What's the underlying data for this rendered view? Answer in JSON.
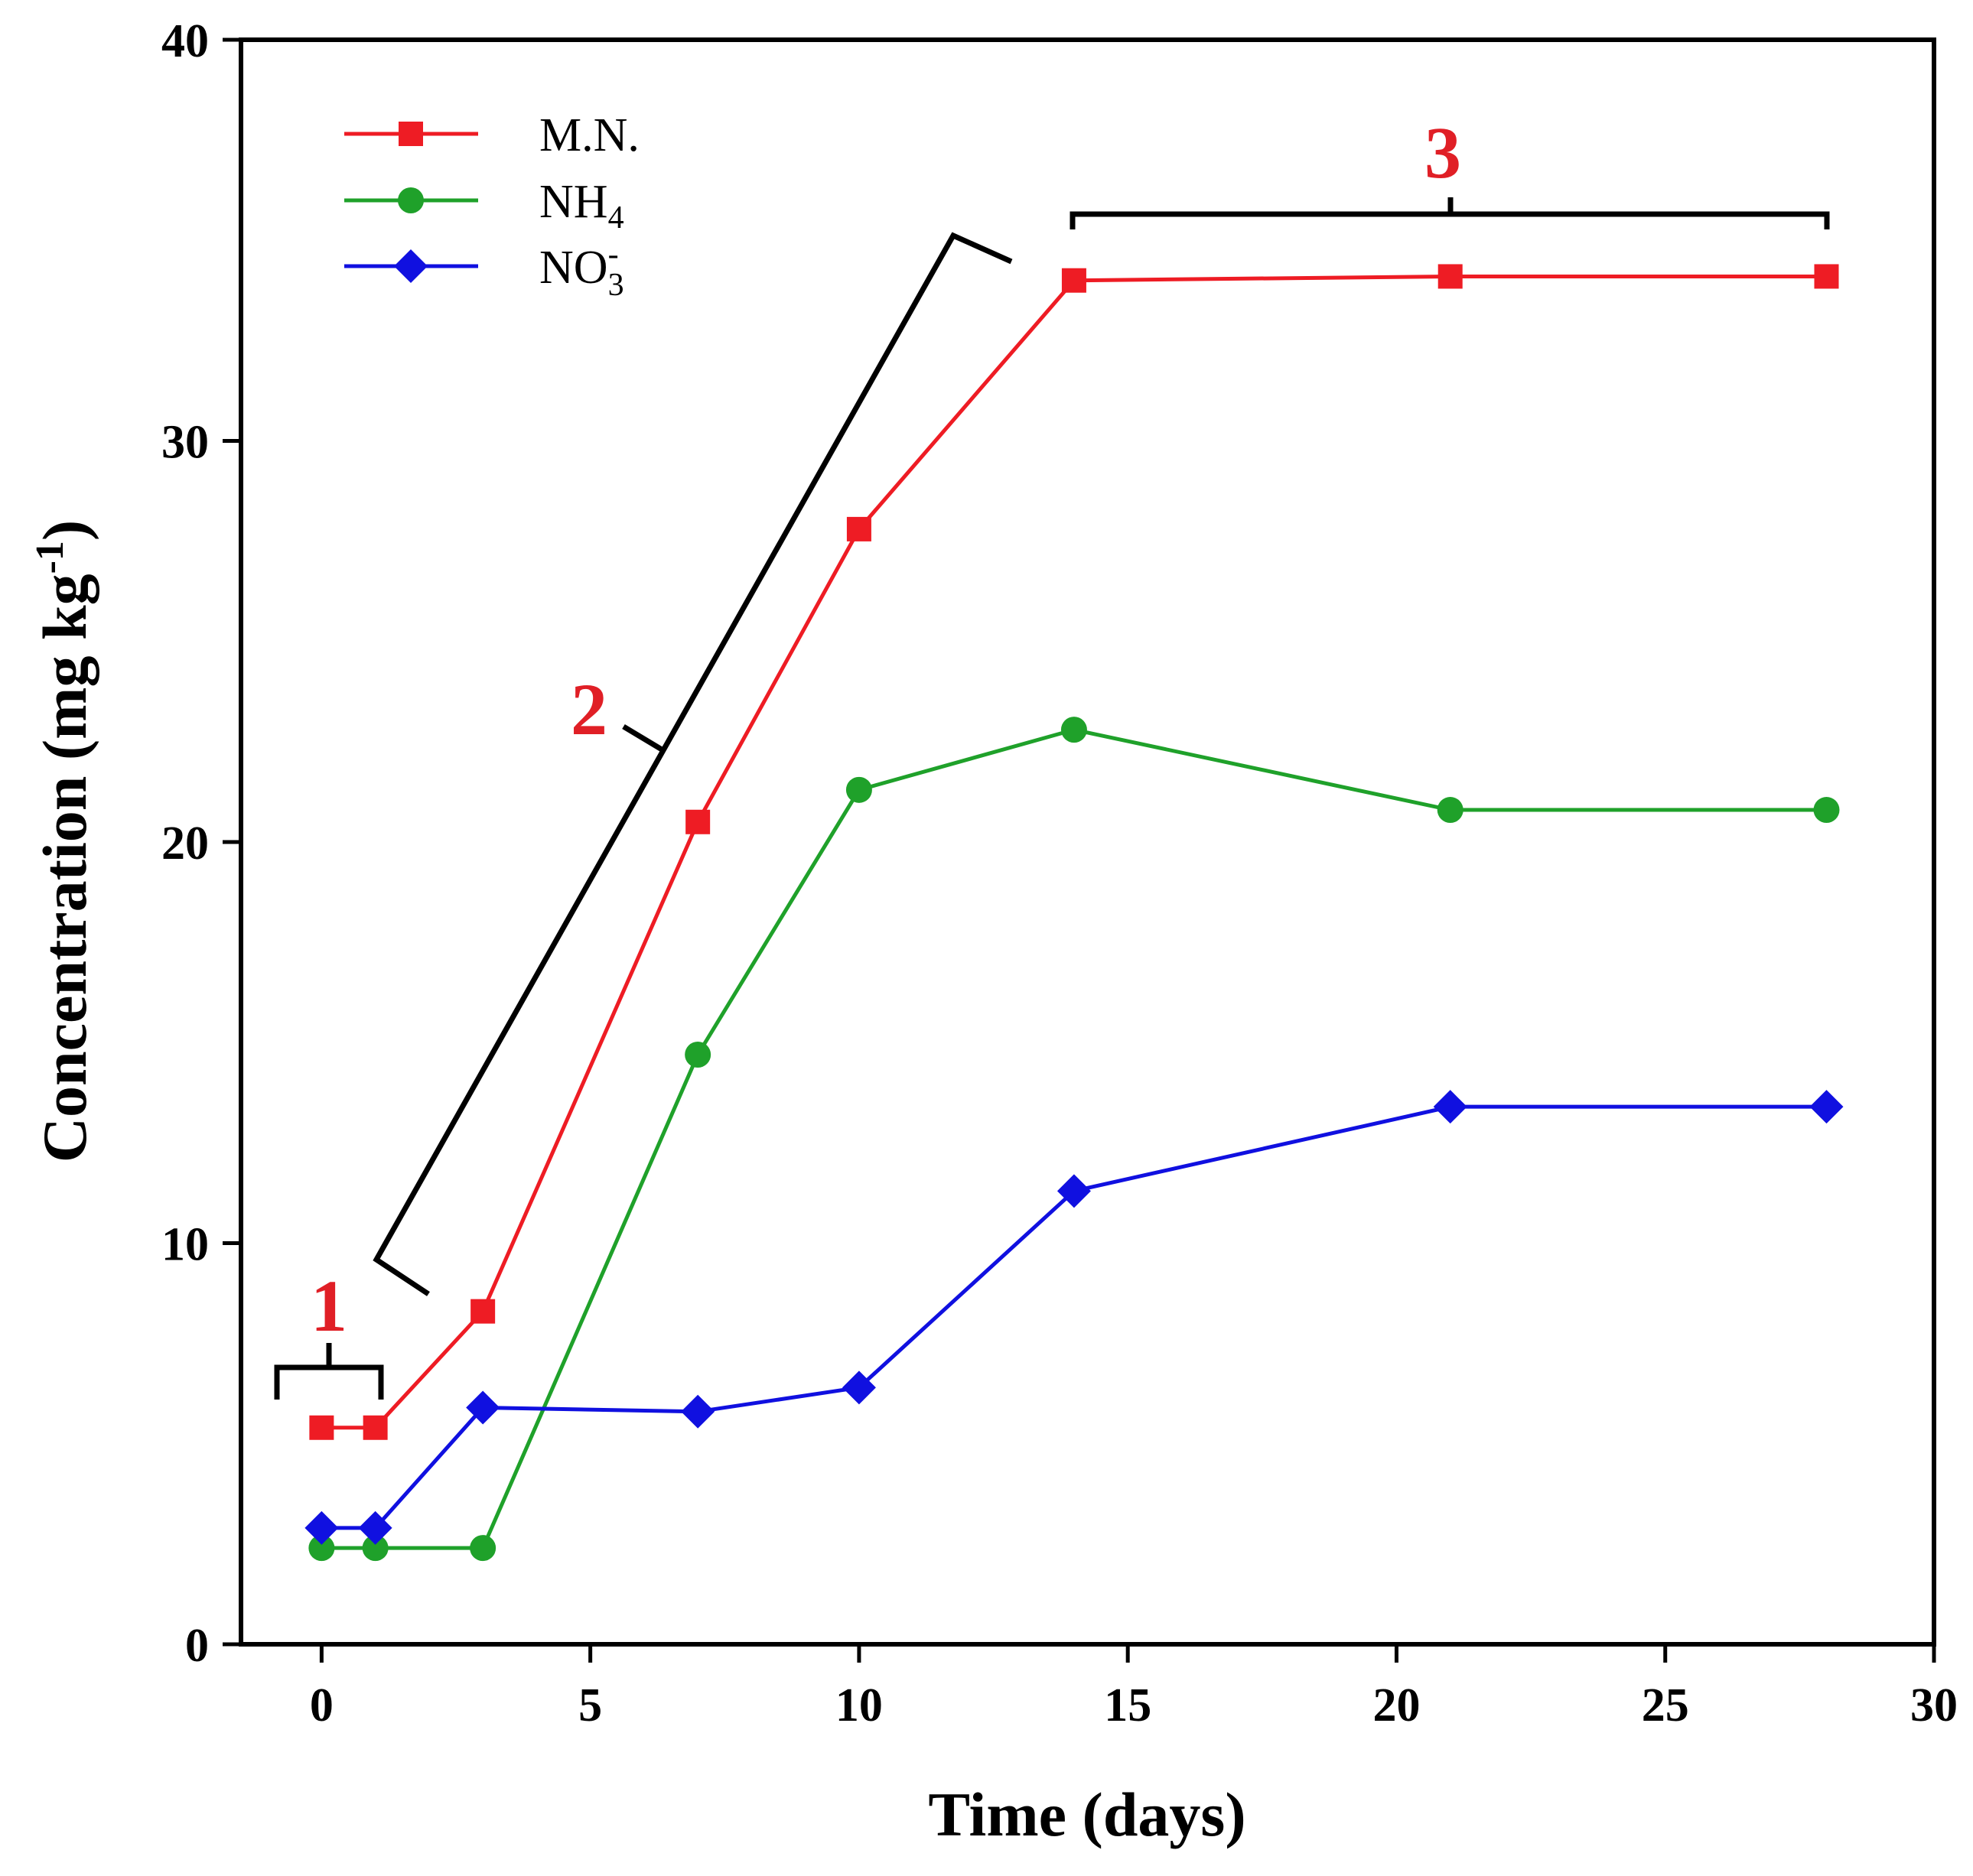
{
  "chart_data": {
    "type": "line",
    "title": "",
    "xlabel": "Time (days)",
    "ylabel_main": "Concentration (mg kg",
    "ylabel_sup": "-1",
    "ylabel_close": ")",
    "xlim": [
      -1.5,
      30
    ],
    "ylim": [
      0,
      40
    ],
    "x_ticks": [
      0,
      5,
      10,
      15,
      20,
      25,
      30
    ],
    "y_ticks": [
      0,
      10,
      20,
      30,
      40
    ],
    "x_tick_labels": [
      "0",
      "5",
      "10",
      "15",
      "20",
      "25",
      "30"
    ],
    "y_tick_labels": [
      "0",
      "10",
      "20",
      "30",
      "40"
    ],
    "grid": false,
    "legend_position": "top-left",
    "series": [
      {
        "name": "M.N.",
        "name_sub": "",
        "name_sup": "",
        "color": "#ee1c24",
        "marker": "square",
        "x": [
          0,
          1,
          3,
          7,
          10,
          14,
          21,
          28
        ],
        "y": [
          5.4,
          5.4,
          8.3,
          20.5,
          27.8,
          34.0,
          34.1,
          34.1
        ]
      },
      {
        "name": "NH",
        "name_sub": "4",
        "name_sup": "",
        "color": "#1fa12a",
        "marker": "circle",
        "x": [
          0,
          1,
          3,
          7,
          10,
          14,
          21,
          28
        ],
        "y": [
          2.4,
          2.4,
          2.4,
          14.7,
          21.3,
          22.8,
          20.8,
          20.8
        ]
      },
      {
        "name": "NO",
        "name_sub": "3",
        "name_sup": "-",
        "color": "#1010e0",
        "marker": "diamond",
        "x": [
          0,
          1,
          3,
          7,
          10,
          14,
          21,
          28
        ],
        "y": [
          2.9,
          2.9,
          5.9,
          5.8,
          6.4,
          11.3,
          13.4,
          13.4
        ]
      }
    ],
    "annotations": [
      {
        "label": "1",
        "color": "#e01f26",
        "description": "phase 1 bracket over days 0-1"
      },
      {
        "label": "2",
        "color": "#e01f26",
        "description": "phase 2 bracket along rising segment"
      },
      {
        "label": "3",
        "color": "#e01f26",
        "description": "phase 3 bracket over days 14-28"
      }
    ]
  }
}
